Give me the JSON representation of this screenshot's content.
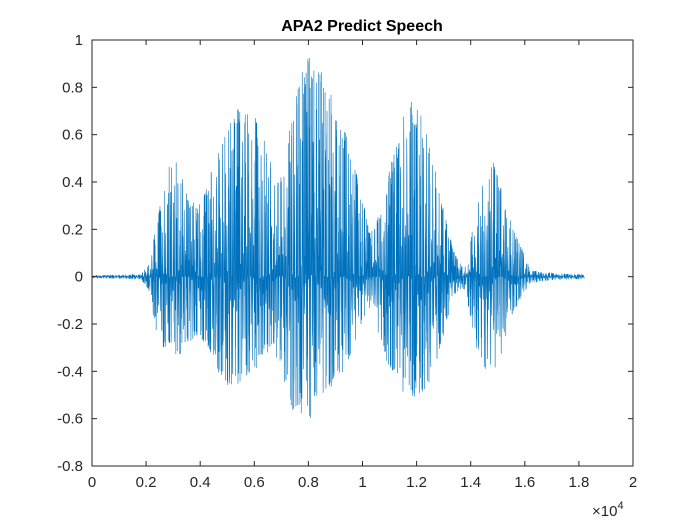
{
  "chart_data": {
    "type": "line",
    "title": "APA2 Predict Speech",
    "xlabel": "",
    "ylabel": "",
    "xlim": [
      0,
      20000
    ],
    "ylim": [
      -0.8,
      1
    ],
    "x_ticks": [
      0,
      2000,
      4000,
      6000,
      8000,
      10000,
      12000,
      14000,
      16000,
      18000,
      20000
    ],
    "x_tick_labels": [
      "0",
      "0.2",
      "0.4",
      "0.6",
      "0.8",
      "1",
      "1.2",
      "1.4",
      "1.6",
      "1.8",
      "2"
    ],
    "x_exponent_label": "×10",
    "x_exponent_power": "4",
    "y_ticks": [
      -0.8,
      -0.6,
      -0.4,
      -0.2,
      0,
      0.2,
      0.4,
      0.6,
      0.8,
      1
    ],
    "y_tick_labels": [
      "-0.8",
      "-0.6",
      "-0.4",
      "-0.2",
      "0",
      "0.2",
      "0.4",
      "0.6",
      "0.8",
      "1"
    ],
    "grid": false,
    "series": [
      {
        "color": "#0072BD",
        "n_samples": 18200,
        "envelope": {
          "x": [
            0,
            1800,
            2100,
            2300,
            2600,
            2900,
            3200,
            3500,
            3900,
            4300,
            4700,
            5100,
            5500,
            5900,
            6300,
            6700,
            7000,
            7300,
            7700,
            8000,
            8300,
            8700,
            9100,
            9500,
            9900,
            10300,
            10700,
            11200,
            11700,
            12200,
            12600,
            13000,
            13400,
            13700,
            13900,
            14100,
            14400,
            14800,
            15200,
            15600,
            15900,
            16200,
            16600,
            17000,
            17500,
            18200
          ],
          "pos": [
            0.006,
            0.01,
            0.05,
            0.18,
            0.35,
            0.55,
            0.48,
            0.35,
            0.3,
            0.42,
            0.55,
            0.65,
            0.77,
            0.72,
            0.6,
            0.48,
            0.42,
            0.65,
            0.85,
            0.98,
            0.93,
            0.82,
            0.7,
            0.58,
            0.38,
            0.18,
            0.3,
            0.55,
            0.77,
            0.68,
            0.5,
            0.3,
            0.1,
            0.04,
            0.05,
            0.25,
            0.38,
            0.5,
            0.35,
            0.2,
            0.12,
            0.03,
            0.02,
            0.015,
            0.012,
            0.01
          ],
          "neg": [
            0.006,
            0.01,
            0.06,
            0.2,
            0.32,
            0.3,
            0.35,
            0.3,
            0.25,
            0.3,
            0.42,
            0.48,
            0.45,
            0.42,
            0.35,
            0.3,
            0.4,
            0.55,
            0.6,
            0.62,
            0.55,
            0.5,
            0.45,
            0.35,
            0.22,
            0.12,
            0.3,
            0.45,
            0.52,
            0.5,
            0.42,
            0.25,
            0.08,
            0.05,
            0.12,
            0.25,
            0.38,
            0.42,
            0.32,
            0.15,
            0.08,
            0.03,
            0.02,
            0.015,
            0.012,
            0.01
          ]
        }
      }
    ]
  }
}
